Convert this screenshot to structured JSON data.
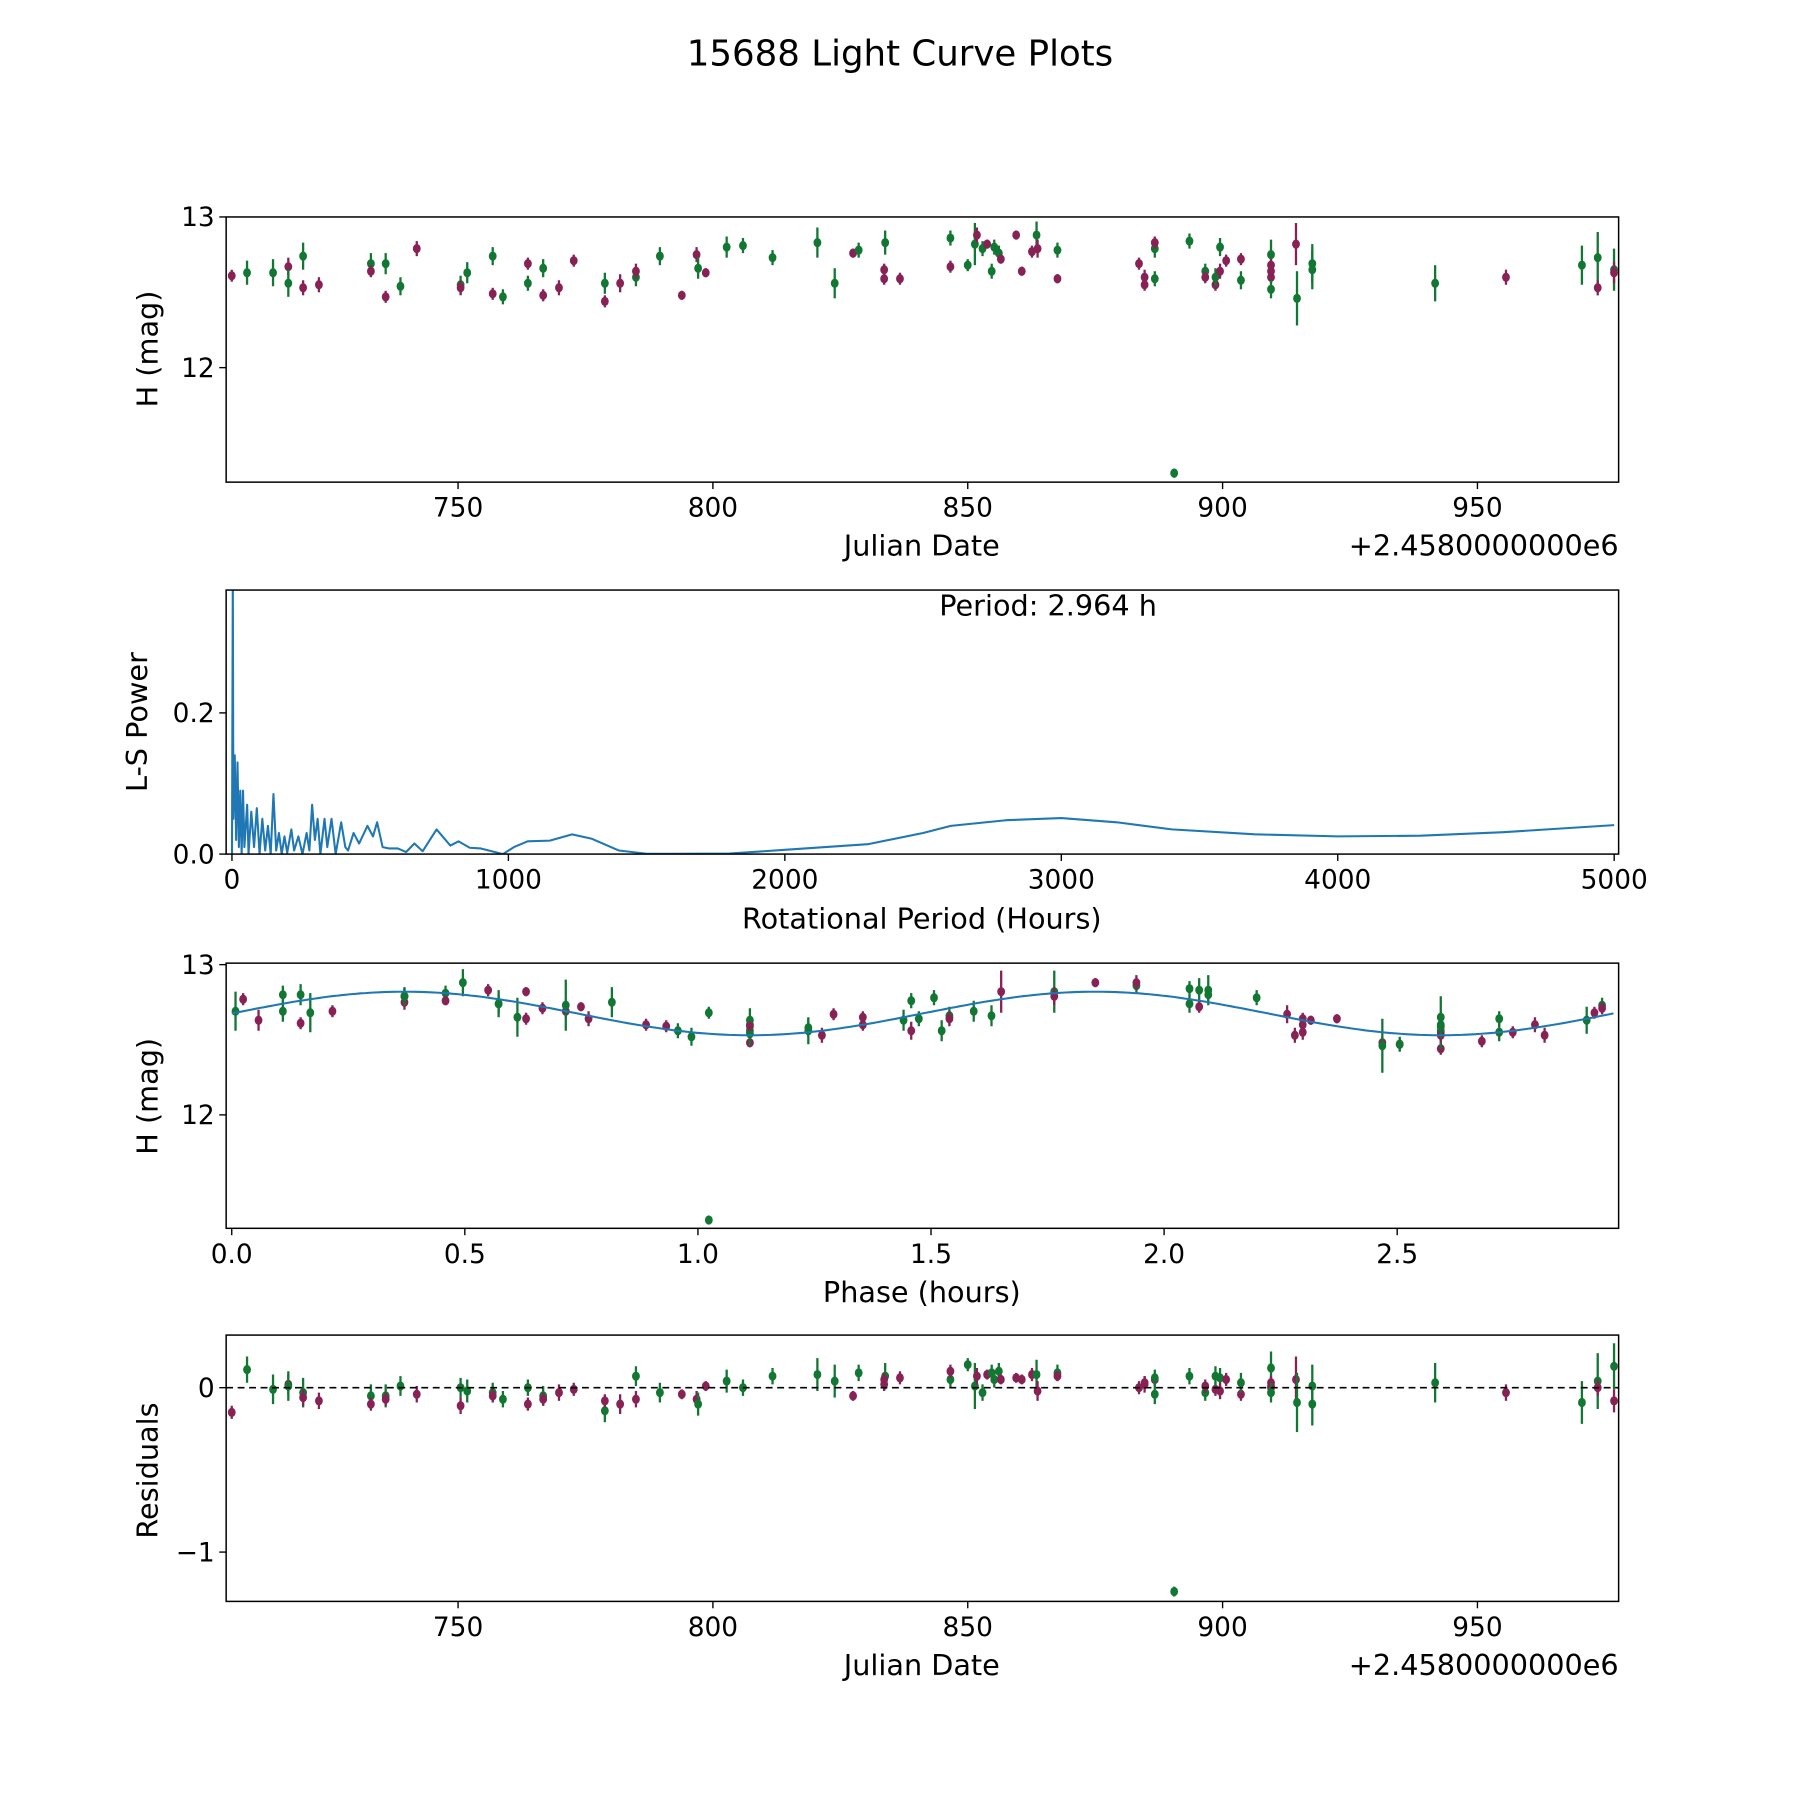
{
  "title": "15688 Light Curve Plots",
  "colors": {
    "filter_a": "#117733",
    "filter_b": "#882255",
    "periodogram": "#1f77b4",
    "model": "#1f77b4"
  },
  "chart_data": [
    {
      "type": "scatter",
      "name": "light-curve",
      "xlabel": "Julian Date",
      "ylabel": "H (mag)",
      "offset_text": "+2.4580000000e6",
      "xlim": [
        704.5,
        977.7
      ],
      "ylim": [
        11.24,
        13.0
      ],
      "xticks": [
        750,
        800,
        850,
        900,
        950
      ],
      "yticks": [
        12,
        13
      ],
      "point_fields": [
        "jd_offset",
        "H",
        "err",
        "filter",
        "residual"
      ],
      "points": [
        [
          705.6,
          12.61,
          0.04,
          "b",
          -0.15
        ],
        [
          708.6,
          12.63,
          0.08,
          "a",
          0.11
        ],
        [
          713.7,
          12.63,
          0.09,
          "a",
          -0.01
        ],
        [
          716.7,
          12.67,
          0.06,
          "b",
          0.02
        ],
        [
          716.7,
          12.56,
          0.09,
          "a",
          0.01
        ],
        [
          719.6,
          12.74,
          0.09,
          "a",
          -0.03
        ],
        [
          719.6,
          12.53,
          0.05,
          "b",
          -0.06
        ],
        [
          722.7,
          12.55,
          0.05,
          "b",
          -0.08
        ],
        [
          732.9,
          12.69,
          0.07,
          "a",
          -0.05
        ],
        [
          732.9,
          12.64,
          0.04,
          "b",
          -0.1
        ],
        [
          735.8,
          12.69,
          0.07,
          "a",
          -0.05
        ],
        [
          735.8,
          12.47,
          0.04,
          "b",
          -0.07
        ],
        [
          738.7,
          12.54,
          0.06,
          "a",
          0.01
        ],
        [
          741.9,
          12.79,
          0.05,
          "b",
          -0.04
        ],
        [
          750.5,
          12.55,
          0.06,
          "a",
          0.0
        ],
        [
          750.5,
          12.53,
          0.05,
          "b",
          -0.11
        ],
        [
          751.8,
          12.63,
          0.07,
          "a",
          -0.02
        ],
        [
          756.8,
          12.74,
          0.06,
          "a",
          -0.03
        ],
        [
          756.8,
          12.49,
          0.04,
          "b",
          -0.05
        ],
        [
          758.8,
          12.47,
          0.05,
          "a",
          -0.07
        ],
        [
          763.7,
          12.69,
          0.04,
          "b",
          -0.1
        ],
        [
          763.7,
          12.56,
          0.05,
          "a",
          0.0
        ],
        [
          766.7,
          12.66,
          0.06,
          "a",
          -0.05
        ],
        [
          766.7,
          12.48,
          0.04,
          "b",
          -0.07
        ],
        [
          769.8,
          12.53,
          0.05,
          "b",
          -0.03
        ],
        [
          772.7,
          12.71,
          0.04,
          "b",
          -0.01
        ],
        [
          778.8,
          12.56,
          0.07,
          "a",
          -0.14
        ],
        [
          778.8,
          12.44,
          0.04,
          "b",
          -0.08
        ],
        [
          781.8,
          12.56,
          0.06,
          "b",
          -0.1
        ],
        [
          784.9,
          12.6,
          0.06,
          "a",
          0.07
        ],
        [
          784.9,
          12.64,
          0.05,
          "b",
          -0.07
        ],
        [
          789.6,
          12.74,
          0.06,
          "a",
          -0.03
        ],
        [
          793.9,
          12.48,
          0.03,
          "b",
          -0.04
        ],
        [
          796.8,
          12.75,
          0.05,
          "b",
          -0.07
        ],
        [
          797.1,
          12.66,
          0.07,
          "a",
          -0.1
        ],
        [
          798.6,
          12.63,
          0.03,
          "b",
          0.01
        ],
        [
          802.7,
          12.8,
          0.07,
          "a",
          0.04
        ],
        [
          805.9,
          12.81,
          0.05,
          "a",
          0.0
        ],
        [
          811.7,
          12.73,
          0.05,
          "a",
          0.07
        ],
        [
          820.5,
          12.83,
          0.1,
          "a",
          0.08
        ],
        [
          823.9,
          12.56,
          0.1,
          "a",
          0.04
        ],
        [
          827.5,
          12.76,
          0.03,
          "b",
          -0.05
        ],
        [
          828.6,
          12.78,
          0.05,
          "a",
          0.09
        ],
        [
          833.8,
          12.83,
          0.08,
          "a",
          0.07
        ],
        [
          833.6,
          12.65,
          0.04,
          "b",
          0.05
        ],
        [
          833.6,
          12.59,
          0.04,
          "b",
          0.02
        ],
        [
          836.7,
          12.59,
          0.04,
          "b",
          0.06
        ],
        [
          846.6,
          12.86,
          0.05,
          "a",
          0.05
        ],
        [
          846.6,
          12.67,
          0.04,
          "b",
          0.1
        ],
        [
          850.0,
          12.68,
          0.04,
          "a",
          0.14
        ],
        [
          851.4,
          12.82,
          0.14,
          "a",
          0.01
        ],
        [
          851.8,
          12.88,
          0.05,
          "b",
          0.07
        ],
        [
          852.9,
          12.79,
          0.05,
          "a",
          -0.03
        ],
        [
          853.8,
          12.82,
          0.03,
          "b",
          0.08
        ],
        [
          854.7,
          12.64,
          0.05,
          "a",
          0.09
        ],
        [
          855.2,
          12.8,
          0.05,
          "a",
          0.05
        ],
        [
          856.1,
          12.76,
          0.05,
          "a",
          0.1
        ],
        [
          856.5,
          12.72,
          0.03,
          "b",
          0.05
        ],
        [
          859.5,
          12.88,
          0.03,
          "b",
          0.06
        ],
        [
          860.6,
          12.64,
          0.03,
          "b",
          0.05
        ],
        [
          862.6,
          12.77,
          0.04,
          "b",
          0.08
        ],
        [
          863.5,
          12.88,
          0.09,
          "a",
          0.08
        ],
        [
          863.7,
          12.79,
          0.06,
          "b",
          -0.02
        ],
        [
          867.6,
          12.78,
          0.05,
          "a",
          0.09
        ],
        [
          867.6,
          12.59,
          0.03,
          "b",
          0.07
        ],
        [
          883.6,
          12.69,
          0.04,
          "b",
          0.0
        ],
        [
          884.7,
          12.6,
          0.05,
          "b",
          0.02
        ],
        [
          884.7,
          12.55,
          0.04,
          "b",
          0.03
        ],
        [
          886.7,
          12.79,
          0.06,
          "a",
          -0.04
        ],
        [
          886.7,
          12.83,
          0.04,
          "b",
          0.05
        ],
        [
          886.7,
          12.59,
          0.05,
          "a",
          0.06
        ],
        [
          893.5,
          12.84,
          0.05,
          "a",
          0.07
        ],
        [
          896.6,
          12.64,
          0.05,
          "a",
          -0.03
        ],
        [
          896.6,
          12.6,
          0.04,
          "b",
          0.01
        ],
        [
          898.6,
          12.55,
          0.04,
          "b",
          -0.01
        ],
        [
          898.6,
          12.6,
          0.06,
          "a",
          0.07
        ],
        [
          899.5,
          12.8,
          0.06,
          "a",
          0.06
        ],
        [
          899.5,
          12.64,
          0.05,
          "b",
          -0.02
        ],
        [
          900.7,
          12.71,
          0.04,
          "b",
          0.05
        ],
        [
          903.6,
          12.72,
          0.04,
          "b",
          -0.04
        ],
        [
          903.6,
          12.58,
          0.06,
          "a",
          0.03
        ],
        [
          909.5,
          12.75,
          0.1,
          "a",
          0.12
        ],
        [
          909.5,
          12.68,
          0.04,
          "b",
          0.03
        ],
        [
          909.5,
          12.64,
          0.04,
          "b",
          0.01
        ],
        [
          909.5,
          12.6,
          0.04,
          "b",
          0.0
        ],
        [
          909.5,
          12.52,
          0.06,
          "a",
          -0.03
        ],
        [
          914.4,
          12.82,
          0.14,
          "b",
          0.05
        ],
        [
          914.6,
          12.46,
          0.18,
          "a",
          -0.09
        ],
        [
          917.6,
          12.69,
          0.13,
          "a",
          0.01
        ],
        [
          917.6,
          12.65,
          0.13,
          "a",
          -0.1
        ],
        [
          941.7,
          12.56,
          0.12,
          "a",
          0.03
        ],
        [
          955.6,
          12.6,
          0.05,
          "b",
          -0.03
        ],
        [
          970.5,
          12.68,
          0.13,
          "a",
          -0.09
        ],
        [
          973.6,
          12.73,
          0.17,
          "a",
          0.04
        ],
        [
          973.6,
          12.53,
          0.05,
          "b",
          0.0
        ],
        [
          976.8,
          12.65,
          0.14,
          "a",
          0.13
        ],
        [
          976.8,
          12.63,
          0.07,
          "b",
          -0.08
        ],
        [
          890.5,
          11.3,
          0.03,
          "a",
          -1.24
        ]
      ]
    },
    {
      "type": "line",
      "name": "periodogram",
      "xlabel": "Rotational Period (Hours)",
      "ylabel": "L-S Power",
      "annotation": "Period: 2.964 h",
      "xlim": [
        -21,
        5016
      ],
      "ylim": [
        0,
        0.374
      ],
      "xticks": [
        0,
        1000,
        2000,
        3000,
        4000,
        5000
      ],
      "yticks": [
        0.0,
        0.2
      ],
      "ytick_labels": [
        "0.0",
        "0.2"
      ],
      "x": [
        0,
        3,
        5,
        10,
        15,
        20,
        25,
        30,
        35,
        40,
        45,
        55,
        60,
        70,
        80,
        90,
        100,
        110,
        120,
        130,
        140,
        150,
        160,
        170,
        180,
        190,
        200,
        215,
        225,
        240,
        255,
        270,
        280,
        290,
        300,
        310,
        320,
        335,
        345,
        360,
        375,
        395,
        410,
        420,
        440,
        460,
        490,
        510,
        525,
        545,
        570,
        600,
        630,
        660,
        690,
        740,
        790,
        820,
        860,
        900,
        940,
        980,
        1020,
        1070,
        1150,
        1230,
        1300,
        1400,
        1500,
        1600,
        1800,
        2000,
        2300,
        2500,
        2600,
        2800,
        3000,
        3200,
        3400,
        3700,
        4000,
        4300,
        4600,
        5000
      ],
      "power": [
        0.0,
        0.4,
        0.05,
        0.14,
        0.02,
        0.13,
        0.01,
        0.09,
        0.0,
        0.09,
        0.01,
        0.07,
        0.0,
        0.06,
        0.01,
        0.065,
        0.0,
        0.05,
        0.005,
        0.04,
        0.0,
        0.085,
        0.005,
        0.03,
        0.0,
        0.025,
        0.002,
        0.035,
        0.005,
        0.025,
        0.0,
        0.03,
        0.005,
        0.07,
        0.02,
        0.05,
        0.0,
        0.05,
        0.01,
        0.05,
        0.0,
        0.045,
        0.01,
        0.005,
        0.03,
        0.015,
        0.04,
        0.025,
        0.045,
        0.01,
        0.008,
        0.008,
        0.003,
        0.015,
        0.004,
        0.035,
        0.012,
        0.018,
        0.009,
        0.008,
        0.004,
        0.0,
        0.01,
        0.018,
        0.019,
        0.028,
        0.022,
        0.005,
        0.0005,
        0.0005,
        0.0008,
        0.006,
        0.014,
        0.03,
        0.04,
        0.048,
        0.051,
        0.045,
        0.035,
        0.028,
        0.025,
        0.026,
        0.031,
        0.041
      ]
    },
    {
      "type": "scatter",
      "name": "phased-light-curve",
      "xlabel": "Phase (hours)",
      "ylabel": "H (mag)",
      "period_hours": 2.964,
      "model": {
        "mean": 12.675,
        "amplitude": 0.145,
        "harmonic": 2
      },
      "xlim": [
        -0.012,
        2.975
      ],
      "ylim": [
        11.245,
        13.01
      ],
      "xticks": [
        0.0,
        0.5,
        1.0,
        1.5,
        2.0,
        2.5
      ],
      "xtick_labels": [
        "0.0",
        "0.5",
        "1.0",
        "1.5",
        "2.0",
        "2.5"
      ],
      "yticks": [
        12,
        13
      ]
    },
    {
      "type": "scatter",
      "name": "residuals",
      "xlabel": "Julian Date",
      "ylabel": "Residuals",
      "offset_text": "+2.4580000000e6",
      "xlim": [
        704.5,
        977.7
      ],
      "ylim": [
        -1.3,
        0.32
      ],
      "xticks": [
        750,
        800,
        850,
        900,
        950
      ],
      "yticks": [
        -1,
        0
      ],
      "ytick_labels": [
        "−1",
        "0"
      ],
      "reference_line": 0
    }
  ]
}
